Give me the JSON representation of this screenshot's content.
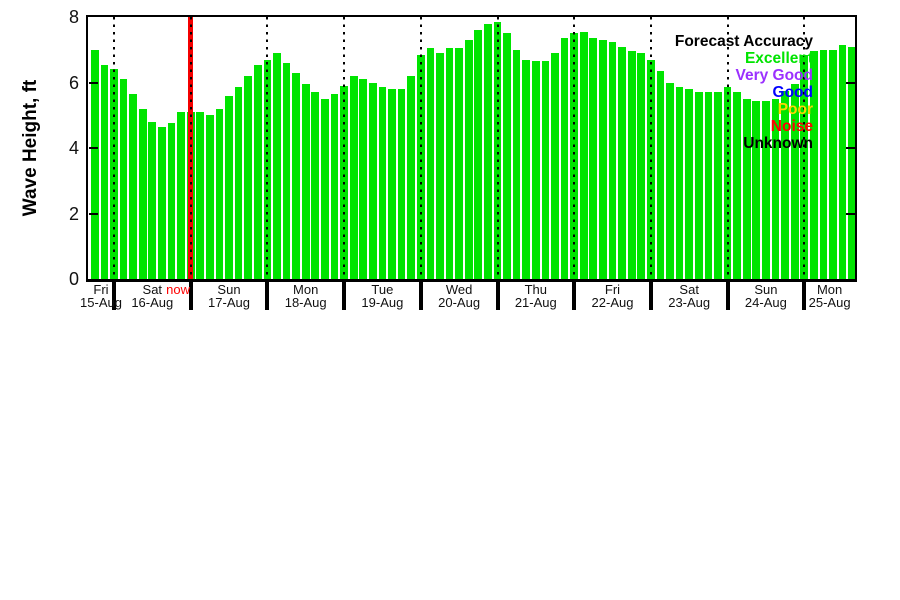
{
  "figure": {
    "ylabel": "Wave Height, ft",
    "yticks": [
      "0",
      "2",
      "4",
      "6",
      "8"
    ],
    "now_label": "now",
    "legend": {
      "title": "Forecast Accuracy",
      "title_color": "#000000",
      "entries": [
        {
          "label": "Excellent",
          "color": "#00e400"
        },
        {
          "label": "Very Good",
          "color": "#9b30ff"
        },
        {
          "label": "Good",
          "color": "#0000ff"
        },
        {
          "label": "Poor",
          "color": "#ffd700"
        },
        {
          "label": "Noise",
          "color": "#ff0000"
        },
        {
          "label": "Unknown",
          "color": "#000000"
        }
      ]
    }
  },
  "chart_data": {
    "type": "bar",
    "title": "",
    "xlabel": "",
    "ylabel": "Wave Height, ft",
    "ylim": [
      0,
      8
    ],
    "yticks": [
      0,
      2,
      4,
      6,
      8
    ],
    "grid": false,
    "bar_color": "#00e400",
    "interval_hours": 3,
    "first_bar_time": "Fri 15-Aug 18:00",
    "values": [
      7.0,
      6.55,
      6.4,
      6.1,
      5.65,
      5.2,
      4.8,
      4.65,
      4.75,
      5.1,
      5.1,
      5.1,
      5.0,
      5.2,
      5.6,
      5.85,
      6.2,
      6.55,
      6.7,
      6.9,
      6.6,
      6.3,
      5.95,
      5.7,
      5.5,
      5.65,
      5.9,
      6.2,
      6.1,
      6.0,
      5.85,
      5.8,
      5.8,
      6.2,
      6.85,
      7.05,
      6.9,
      7.05,
      7.05,
      7.3,
      7.6,
      7.8,
      7.85,
      7.5,
      7.0,
      6.7,
      6.65,
      6.65,
      6.9,
      7.35,
      7.5,
      7.55,
      7.35,
      7.3,
      7.25,
      7.1,
      6.95,
      6.9,
      6.7,
      6.35,
      6.0,
      5.85,
      5.8,
      5.7,
      5.7,
      5.7,
      5.85,
      5.7,
      5.5,
      5.45,
      5.45,
      5.5,
      5.75,
      5.95,
      6.85,
      6.95,
      7.0,
      7.0,
      7.15,
      7.1
    ],
    "days": [
      {
        "weekday": "Fri",
        "date": "15-Aug"
      },
      {
        "weekday": "Sat",
        "date": "16-Aug"
      },
      {
        "weekday": "Sun",
        "date": "17-Aug"
      },
      {
        "weekday": "Mon",
        "date": "18-Aug"
      },
      {
        "weekday": "Tue",
        "date": "19-Aug"
      },
      {
        "weekday": "Wed",
        "date": "20-Aug"
      },
      {
        "weekday": "Thu",
        "date": "21-Aug"
      },
      {
        "weekday": "Fri",
        "date": "22-Aug"
      },
      {
        "weekday": "Sat",
        "date": "23-Aug"
      },
      {
        "weekday": "Sun",
        "date": "24-Aug"
      },
      {
        "weekday": "Mon",
        "date": "25-Aug"
      }
    ],
    "now_marker": {
      "label": "now",
      "at_day_boundary": 1,
      "line_color": "#f40000",
      "label_color": "#ff0000"
    },
    "legend_position": "upper-right-inside"
  }
}
